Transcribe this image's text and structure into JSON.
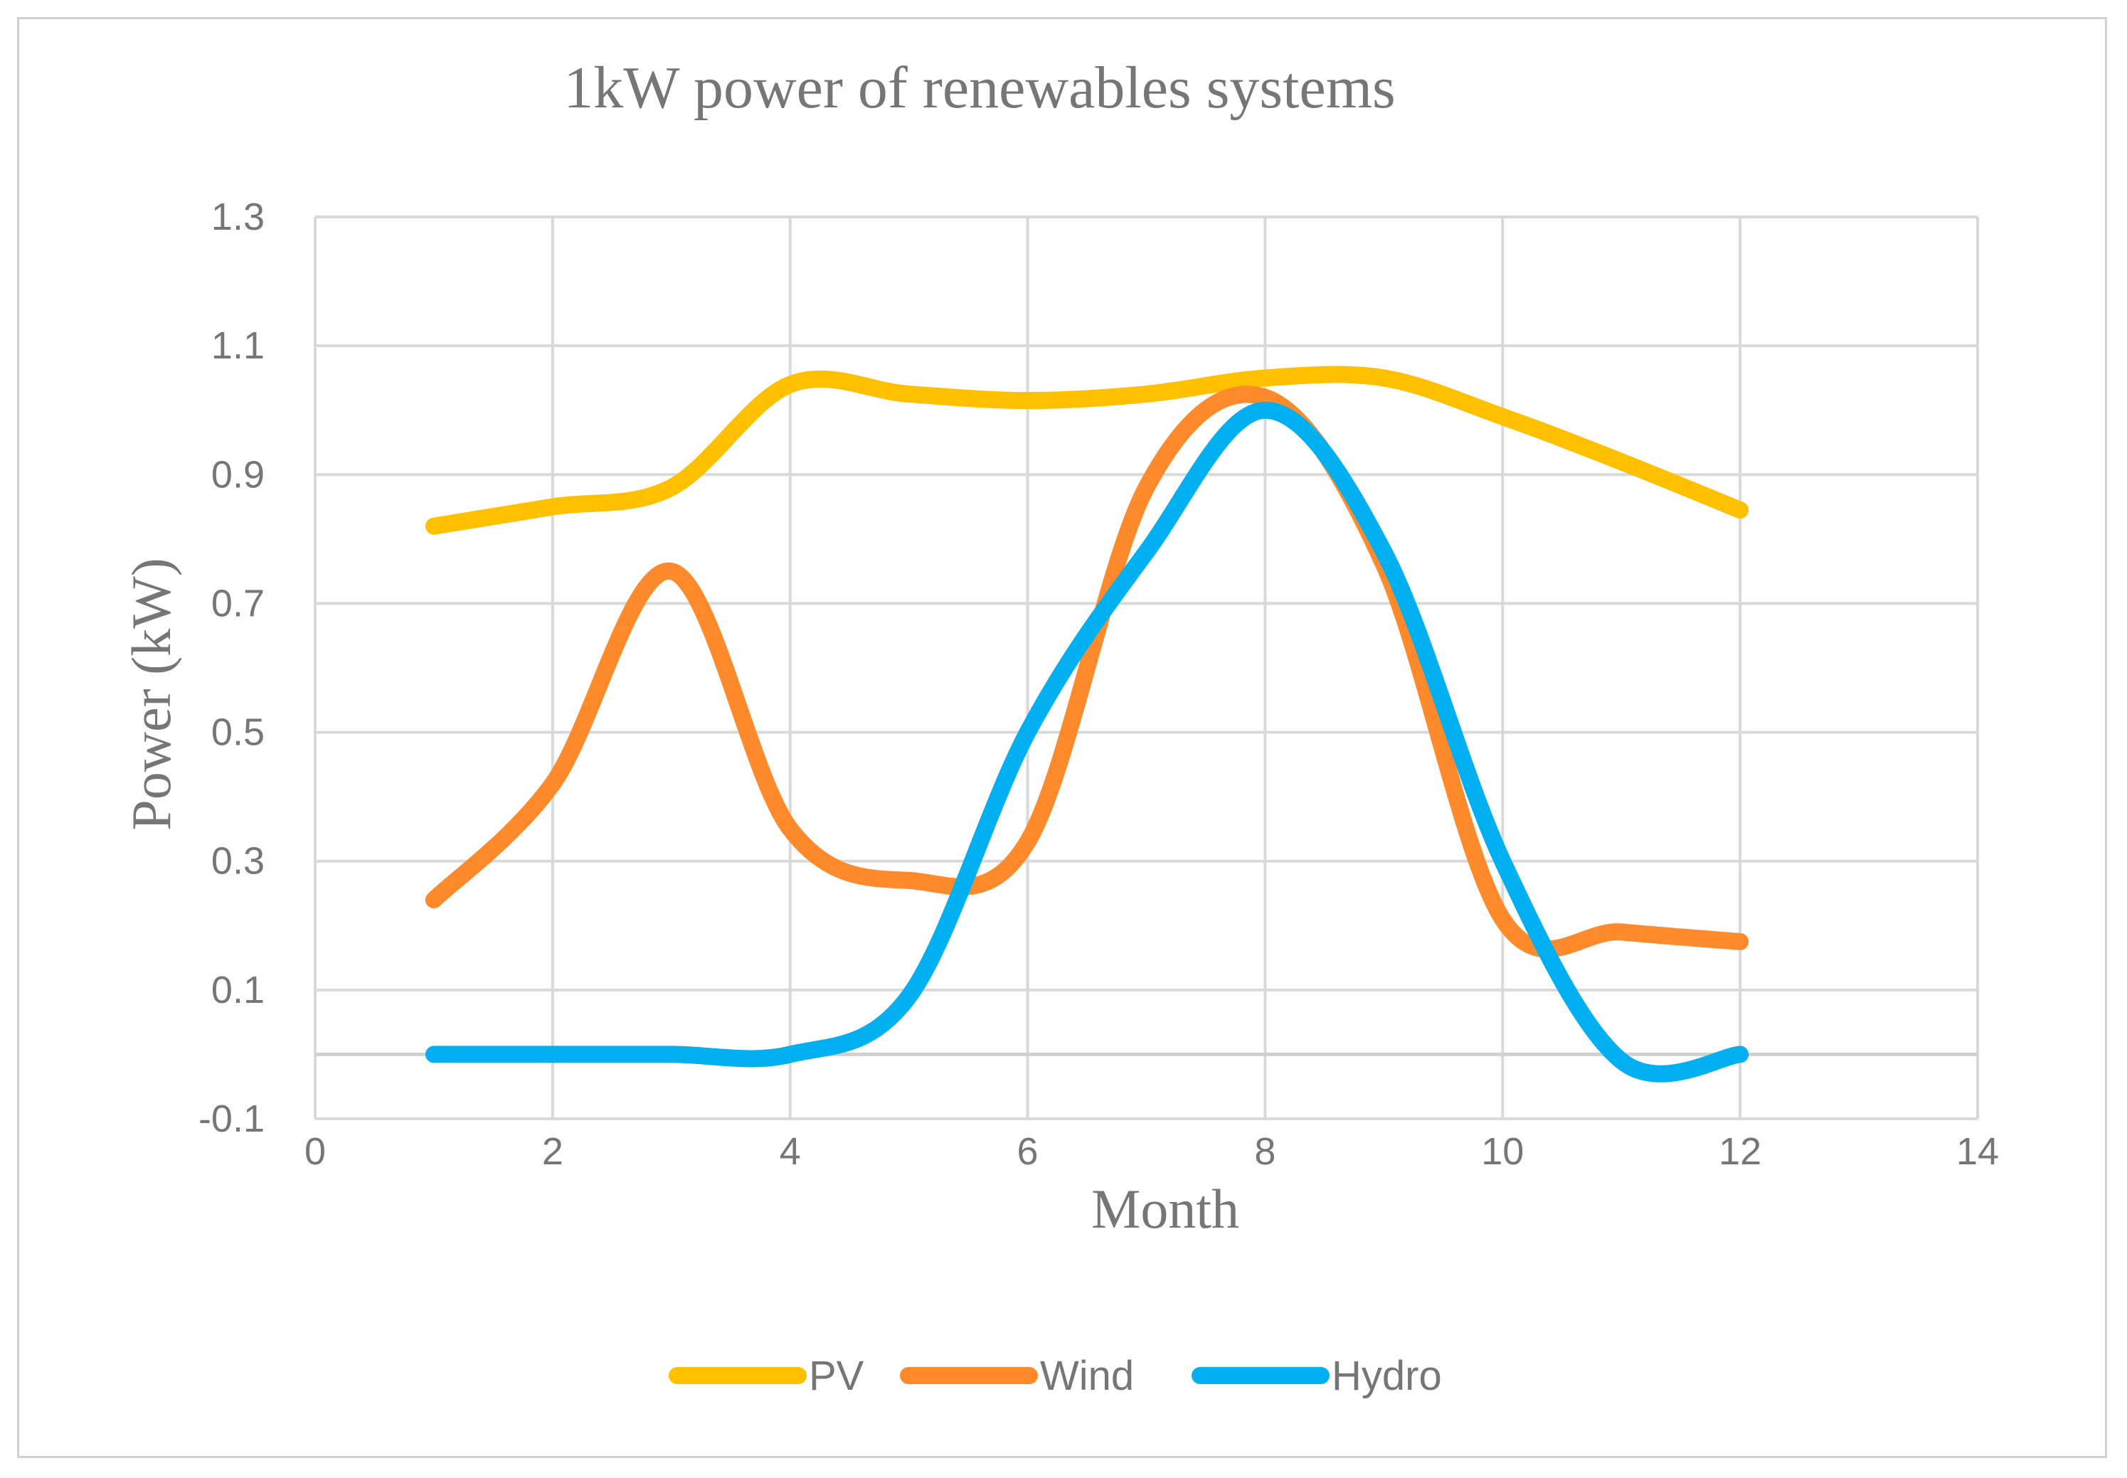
{
  "chart_data": {
    "type": "line",
    "title": "1kW power of renewables systems",
    "xlabel": "Month",
    "ylabel": "Power (kW)",
    "xlim": [
      0,
      14
    ],
    "ylim": [
      -0.1,
      1.3
    ],
    "xticks": [
      0,
      2,
      4,
      6,
      8,
      10,
      12,
      14
    ],
    "yticks": [
      -0.1,
      0.1,
      0.3,
      0.5,
      0.7,
      0.9,
      1.1,
      1.3
    ],
    "grid": true,
    "legend_position": "bottom",
    "x": [
      1,
      2,
      3,
      4,
      5,
      6,
      7,
      8,
      9,
      10,
      11,
      12
    ],
    "series": [
      {
        "name": "PV",
        "color": "#FFC000",
        "values": [
          0.82,
          0.85,
          0.88,
          1.04,
          1.025,
          1.015,
          1.025,
          1.05,
          1.05,
          0.99,
          0.92,
          0.845
        ]
      },
      {
        "name": "Wind",
        "color": "#FF8A2B",
        "values": [
          0.24,
          0.42,
          0.75,
          0.35,
          0.27,
          0.33,
          0.88,
          1.02,
          0.76,
          0.21,
          0.19,
          0.175
        ]
      },
      {
        "name": "Hydro",
        "color": "#00B0F0",
        "values": [
          0.0,
          0.0,
          0.0,
          0.0,
          0.09,
          0.5,
          0.78,
          1.0,
          0.78,
          0.3,
          -0.01,
          0.0
        ]
      }
    ]
  }
}
